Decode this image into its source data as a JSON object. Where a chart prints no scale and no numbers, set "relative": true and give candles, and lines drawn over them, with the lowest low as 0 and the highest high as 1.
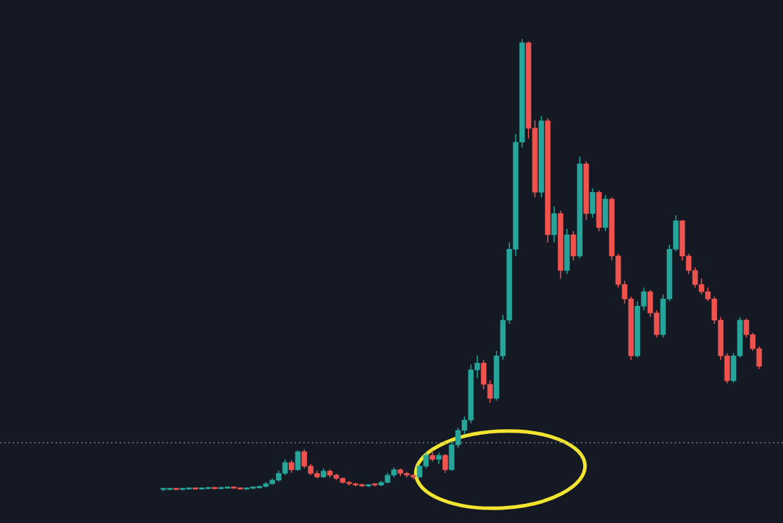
{
  "chart_data": {
    "type": "candlestick",
    "relative": true,
    "categories": [
      null,
      null,
      null,
      null,
      null,
      null,
      null,
      null,
      null,
      null,
      null,
      null,
      null,
      null,
      null,
      null,
      null,
      null,
      null,
      null,
      null,
      null,
      null,
      null,
      null,
      null,
      null,
      null,
      null,
      null,
      null,
      null,
      null,
      null,
      null,
      null,
      null,
      null,
      null,
      null,
      null,
      null,
      null,
      null,
      null,
      null,
      null,
      null,
      null,
      null,
      null,
      null,
      null,
      null,
      null,
      null,
      null,
      null,
      null,
      null,
      null,
      null,
      null,
      null,
      null,
      null,
      null,
      null,
      null,
      null,
      null,
      null,
      null,
      null,
      null,
      null,
      null,
      null,
      null,
      null,
      null,
      null,
      null,
      null,
      null,
      null,
      null,
      null,
      null,
      null,
      null,
      null,
      null,
      null
    ],
    "ohlc": [
      [
        0.003,
        0.006,
        0,
        0.003
      ],
      [
        0.003,
        0.005,
        0.002,
        0.004
      ],
      [
        0.004,
        0.006,
        0.002,
        0.003
      ],
      [
        0.003,
        0.005,
        0.002,
        0.004
      ],
      [
        0.004,
        0.006,
        0.003,
        0.005
      ],
      [
        0.005,
        0.006,
        0.003,
        0.004
      ],
      [
        0.004,
        0.006,
        0.003,
        0.005
      ],
      [
        0.005,
        0.007,
        0.004,
        0.006
      ],
      [
        0.006,
        0.007,
        0.004,
        0.005
      ],
      [
        0.005,
        0.007,
        0.004,
        0.006
      ],
      [
        0.006,
        0.008,
        0.005,
        0.007
      ],
      [
        0.007,
        0.008,
        0.005,
        0.006
      ],
      [
        0.005,
        0.008,
        0.003,
        0.004
      ],
      [
        0.004,
        0.008,
        0.003,
        0.006
      ],
      [
        0.006,
        0.009,
        0.004,
        0.007
      ],
      [
        0.007,
        0.012,
        0.005,
        0.01
      ],
      [
        0.01,
        0.02,
        0.008,
        0.016
      ],
      [
        0.016,
        0.028,
        0.014,
        0.024
      ],
      [
        0.024,
        0.045,
        0.02,
        0.039
      ],
      [
        0.039,
        0.07,
        0.035,
        0.063
      ],
      [
        0.063,
        0.068,
        0.04,
        0.047
      ],
      [
        0.047,
        0.09,
        0.045,
        0.087
      ],
      [
        0.087,
        0.092,
        0.05,
        0.055
      ],
      [
        0.055,
        0.06,
        0.035,
        0.039
      ],
      [
        0.039,
        0.045,
        0.028,
        0.031
      ],
      [
        0.031,
        0.05,
        0.029,
        0.044
      ],
      [
        0.044,
        0.048,
        0.03,
        0.035
      ],
      [
        0.035,
        0.038,
        0.024,
        0.028
      ],
      [
        0.028,
        0.03,
        0.016,
        0.019
      ],
      [
        0.019,
        0.022,
        0.012,
        0.016
      ],
      [
        0.016,
        0.018,
        0.01,
        0.013
      ],
      [
        0.013,
        0.016,
        0.009,
        0.011
      ],
      [
        0.011,
        0.015,
        0.009,
        0.014
      ],
      [
        0.014,
        0.016,
        0.01,
        0.013
      ],
      [
        0.013,
        0.022,
        0.011,
        0.019
      ],
      [
        0.019,
        0.04,
        0.017,
        0.035
      ],
      [
        0.035,
        0.052,
        0.03,
        0.047
      ],
      [
        0.047,
        0.05,
        0.033,
        0.039
      ],
      [
        0.039,
        0.042,
        0.03,
        0.035
      ],
      [
        0.035,
        0.036,
        0.026,
        0.031
      ],
      [
        0.031,
        0.06,
        0.029,
        0.055
      ],
      [
        0.055,
        0.085,
        0.05,
        0.079
      ],
      [
        0.079,
        0.09,
        0.065,
        0.07
      ],
      [
        0.07,
        0.085,
        0.06,
        0.079
      ],
      [
        0.079,
        0.082,
        0.04,
        0.047
      ],
      [
        0.047,
        0.11,
        0.045,
        0.102
      ],
      [
        0.102,
        0.14,
        0.095,
        0.134
      ],
      [
        0.134,
        0.165,
        0.125,
        0.157
      ],
      [
        0.157,
        0.28,
        0.15,
        0.268
      ],
      [
        0.268,
        0.3,
        0.25,
        0.283
      ],
      [
        0.283,
        0.29,
        0.225,
        0.236
      ],
      [
        0.236,
        0.245,
        0.195,
        0.205
      ],
      [
        0.205,
        0.31,
        0.2,
        0.299
      ],
      [
        0.299,
        0.39,
        0.29,
        0.378
      ],
      [
        0.378,
        0.55,
        0.37,
        0.535
      ],
      [
        0.535,
        0.79,
        0.52,
        0.772
      ],
      [
        0.772,
        1,
        0.76,
        0.992
      ],
      [
        0.992,
        0.995,
        0.78,
        0.803
      ],
      [
        0.803,
        0.82,
        0.65,
        0.661
      ],
      [
        0.661,
        0.83,
        0.65,
        0.819
      ],
      [
        0.819,
        0.825,
        0.55,
        0.567
      ],
      [
        0.567,
        0.63,
        0.55,
        0.614
      ],
      [
        0.614,
        0.62,
        0.47,
        0.488
      ],
      [
        0.488,
        0.58,
        0.48,
        0.567
      ],
      [
        0.567,
        0.575,
        0.51,
        0.52
      ],
      [
        0.52,
        0.74,
        0.515,
        0.724
      ],
      [
        0.724,
        0.73,
        0.6,
        0.614
      ],
      [
        0.614,
        0.67,
        0.605,
        0.661
      ],
      [
        0.661,
        0.665,
        0.575,
        0.583
      ],
      [
        0.583,
        0.655,
        0.575,
        0.646
      ],
      [
        0.646,
        0.65,
        0.51,
        0.52
      ],
      [
        0.52,
        0.525,
        0.45,
        0.457
      ],
      [
        0.457,
        0.465,
        0.415,
        0.425
      ],
      [
        0.425,
        0.43,
        0.29,
        0.299
      ],
      [
        0.299,
        0.42,
        0.295,
        0.409
      ],
      [
        0.409,
        0.45,
        0.4,
        0.441
      ],
      [
        0.441,
        0.445,
        0.385,
        0.394
      ],
      [
        0.394,
        0.4,
        0.34,
        0.346
      ],
      [
        0.346,
        0.435,
        0.34,
        0.425
      ],
      [
        0.425,
        0.545,
        0.42,
        0.535
      ],
      [
        0.535,
        0.61,
        0.53,
        0.598
      ],
      [
        0.598,
        0.6,
        0.51,
        0.52
      ],
      [
        0.52,
        0.525,
        0.48,
        0.488
      ],
      [
        0.488,
        0.495,
        0.45,
        0.457
      ],
      [
        0.457,
        0.47,
        0.435,
        0.441
      ],
      [
        0.441,
        0.45,
        0.42,
        0.425
      ],
      [
        0.425,
        0.43,
        0.37,
        0.378
      ],
      [
        0.378,
        0.385,
        0.29,
        0.299
      ],
      [
        0.299,
        0.305,
        0.238,
        0.244
      ],
      [
        0.244,
        0.305,
        0.24,
        0.299
      ],
      [
        0.299,
        0.385,
        0.295,
        0.378
      ],
      [
        0.378,
        0.382,
        0.34,
        0.346
      ],
      [
        0.346,
        0.35,
        0.31,
        0.315
      ],
      [
        0.315,
        0.32,
        0.27,
        0.276
      ]
    ],
    "ref_lines": [
      {
        "axis": "y",
        "value": 0.107,
        "line_style": "dotted",
        "color": "#8a8e99"
      }
    ],
    "legend": false
  }
}
